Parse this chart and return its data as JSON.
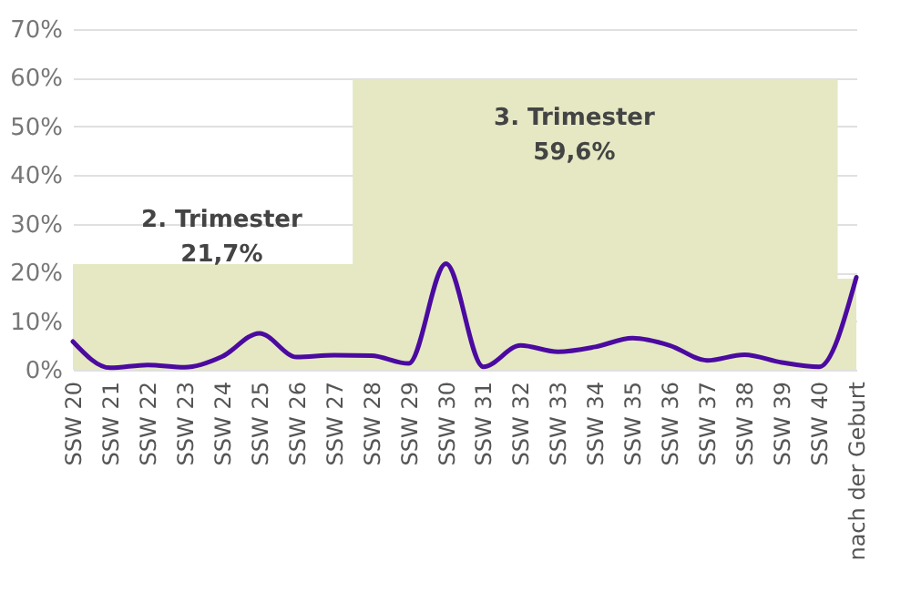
{
  "chart_data": {
    "type": "line",
    "categories": [
      "SSW 20",
      "SSW 21",
      "SSW 22",
      "SSW 23",
      "SSW 24",
      "SSW 25",
      "SSW 26",
      "SSW 27",
      "SSW 28",
      "SSW 29",
      "SSW 30",
      "SSW 31",
      "SSW 32",
      "SSW 33",
      "SSW 34",
      "SSW 35",
      "SSW 36",
      "SSW 37",
      "SSW 38",
      "SSW 39",
      "SSW 40",
      "nach der Geburt"
    ],
    "series": [
      {
        "type": "area",
        "color": "#e5e8c3",
        "values": [
          21.7,
          21.7,
          21.7,
          21.7,
          21.7,
          21.7,
          21.7,
          21.7,
          59.6,
          59.6,
          59.6,
          59.6,
          59.6,
          59.6,
          59.6,
          59.6,
          59.6,
          59.6,
          59.6,
          59.6,
          59.6,
          18.7
        ]
      },
      {
        "color": "#4b0aa0",
        "values": [
          5.8,
          0.4,
          1.0,
          0.5,
          2.7,
          7.5,
          2.6,
          3.0,
          2.9,
          1.3,
          21.8,
          0.6,
          5.0,
          3.7,
          4.7,
          6.5,
          5.0,
          1.9,
          3.1,
          1.5,
          0.6,
          19.0
        ]
      }
    ],
    "annotations": [
      "2. Trimester\n21,7%",
      "3. Trimester\n59,6%"
    ],
    "ylim": [
      0,
      70
    ],
    "yticks": [
      {
        "value": 0,
        "label": "0%"
      },
      {
        "value": 10,
        "label": "10%"
      },
      {
        "value": 20,
        "label": "20%"
      },
      {
        "value": 30,
        "label": "30%"
      },
      {
        "value": 40,
        "label": "40%"
      },
      {
        "value": 50,
        "label": "50%"
      },
      {
        "value": 60,
        "label": "60%"
      },
      {
        "value": 70,
        "label": "70%"
      }
    ],
    "grid": "y",
    "marker": "none",
    "line_style": "solid"
  }
}
